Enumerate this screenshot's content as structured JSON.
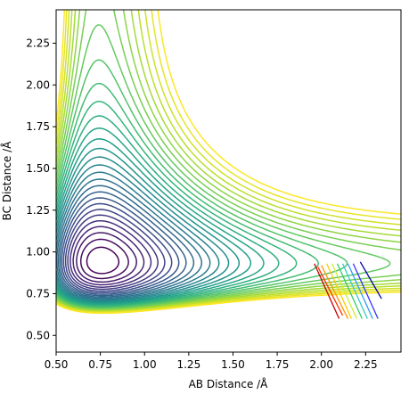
{
  "chart_data": {
    "type": "contour",
    "title": "",
    "xlabel": "AB Distance /Å",
    "ylabel": "BC Distance /Å",
    "xlim": [
      0.5,
      2.45
    ],
    "ylim": [
      0.4,
      2.45
    ],
    "xticks": [
      "0.50",
      "0.75",
      "1.00",
      "1.25",
      "1.50",
      "1.75",
      "2.00",
      "2.25"
    ],
    "yticks": [
      "0.50",
      "0.75",
      "1.00",
      "1.25",
      "1.50",
      "1.75",
      "2.00",
      "2.25"
    ],
    "grid": false,
    "legend": "none",
    "surface": {
      "description_units": "Å",
      "colormap": "viridis",
      "reactant_valley_x": 0.93,
      "product_valley_y": 0.74,
      "levels": 30
    },
    "trajectory_segments": [
      {
        "x": [
          1.96,
          2.1
        ],
        "y": [
          0.93,
          0.6
        ],
        "color": "#c00000"
      },
      {
        "x": [
          1.98,
          2.12
        ],
        "y": [
          0.91,
          0.62
        ],
        "color": "#ff3300"
      },
      {
        "x": [
          2.0,
          2.15
        ],
        "y": [
          0.92,
          0.6
        ],
        "color": "#ff9900"
      },
      {
        "x": [
          2.03,
          2.17
        ],
        "y": [
          0.93,
          0.6
        ],
        "color": "#ffcc00"
      },
      {
        "x": [
          2.06,
          2.2
        ],
        "y": [
          0.93,
          0.6
        ],
        "color": "#ccee33"
      },
      {
        "x": [
          2.09,
          2.23
        ],
        "y": [
          0.93,
          0.6
        ],
        "color": "#33cc66"
      },
      {
        "x": [
          2.12,
          2.26
        ],
        "y": [
          0.93,
          0.6
        ],
        "color": "#33cccc"
      },
      {
        "x": [
          2.15,
          2.29
        ],
        "y": [
          0.93,
          0.6
        ],
        "color": "#3399ff"
      },
      {
        "x": [
          2.18,
          2.32
        ],
        "y": [
          0.93,
          0.6
        ],
        "color": "#3333ff"
      },
      {
        "x": [
          2.22,
          2.34
        ],
        "y": [
          0.94,
          0.72
        ],
        "color": "#0000aa"
      }
    ]
  }
}
